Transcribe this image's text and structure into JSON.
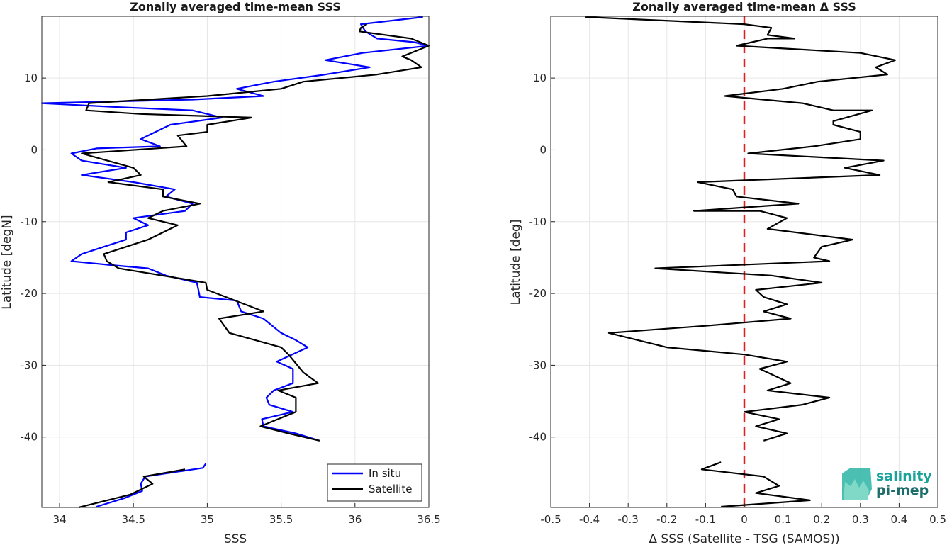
{
  "chart_data": [
    {
      "type": "line",
      "title": "Zonally averaged time-mean SSS",
      "xlabel": "SSS",
      "ylabel": "Latitude [degN]",
      "xlim": [
        33.88,
        36.5
      ],
      "ylim": [
        -49.8,
        18.6
      ],
      "xticks": [
        34,
        34.5,
        35,
        35.5,
        36,
        36.5
      ],
      "xtick_labels": [
        "34",
        "34.5",
        "35",
        "35.5",
        "36",
        "36.5"
      ],
      "yticks": [
        -40,
        -30,
        -20,
        -10,
        0,
        10
      ],
      "ytick_labels": [
        "-40",
        "-30",
        "-20",
        "-10",
        "0",
        "10"
      ],
      "grid": true,
      "legend_position": "bottom-right",
      "legend": [
        "In situ",
        "Satellite"
      ],
      "series": [
        {
          "name": "In situ",
          "color": "#0000ff",
          "segments": [
            [
              [
                36.46,
                18.5
              ],
              [
                36.04,
                17.5
              ],
              [
                36.07,
                16.5
              ],
              [
                36.15,
                15.5
              ],
              [
                36.4,
                15.0
              ],
              [
                36.5,
                14.5
              ],
              [
                36.05,
                13.5
              ],
              [
                35.8,
                12.5
              ],
              [
                36.1,
                11.5
              ],
              [
                35.8,
                10.5
              ],
              [
                35.45,
                9.5
              ],
              [
                35.2,
                8.5
              ],
              [
                35.38,
                7.5
              ],
              [
                34.9,
                7.0
              ],
              [
                33.88,
                6.5
              ],
              [
                34.35,
                6.0
              ],
              [
                34.9,
                5.5
              ],
              [
                35.1,
                4.5
              ],
              [
                34.75,
                3.5
              ],
              [
                34.55,
                1.5
              ],
              [
                34.68,
                0.5
              ],
              [
                34.25,
                0.2
              ],
              [
                34.08,
                -0.5
              ],
              [
                34.15,
                -1.5
              ],
              [
                34.45,
                -2.5
              ],
              [
                34.15,
                -3.5
              ],
              [
                34.5,
                -4.5
              ],
              [
                34.78,
                -5.5
              ],
              [
                34.72,
                -6.5
              ],
              [
                34.9,
                -7.5
              ],
              [
                34.85,
                -8.5
              ],
              [
                34.5,
                -9.5
              ],
              [
                34.6,
                -10.5
              ],
              [
                34.45,
                -11.5
              ],
              [
                34.45,
                -12.5
              ],
              [
                34.3,
                -13.5
              ],
              [
                34.15,
                -14.5
              ],
              [
                34.08,
                -15.5
              ],
              [
                34.33,
                -16.0
              ],
              [
                34.6,
                -16.5
              ],
              [
                34.72,
                -17.5
              ],
              [
                34.93,
                -18.5
              ],
              [
                34.95,
                -20.5
              ],
              [
                35.2,
                -21.0
              ],
              [
                35.23,
                -22.5
              ],
              [
                35.38,
                -23.5
              ],
              [
                35.5,
                -25.5
              ],
              [
                35.6,
                -26.5
              ],
              [
                35.68,
                -27.5
              ],
              [
                35.47,
                -29.5
              ],
              [
                35.58,
                -30.5
              ],
              [
                35.58,
                -32.5
              ],
              [
                35.45,
                -33.5
              ],
              [
                35.4,
                -34.5
              ],
              [
                35.42,
                -35.5
              ],
              [
                35.58,
                -36.5
              ],
              [
                35.37,
                -37.5
              ],
              [
                35.38,
                -38.5
              ],
              [
                35.6,
                -39.5
              ],
              [
                35.76,
                -40.5
              ]
            ],
            [
              [
                34.99,
                -43.7
              ],
              [
                34.97,
                -44.3
              ],
              [
                34.58,
                -45.5
              ],
              [
                34.55,
                -46.5
              ],
              [
                34.56,
                -47.5
              ],
              [
                34.44,
                -48.5
              ],
              [
                34.25,
                -49.7
              ]
            ]
          ]
        },
        {
          "name": "Satellite",
          "color": "#000000",
          "segments": [
            [
              [
                36.08,
                17.5
              ],
              [
                36.04,
                17.0
              ],
              [
                36.03,
                16.5
              ],
              [
                36.38,
                15.5
              ],
              [
                36.5,
                14.5
              ],
              [
                36.32,
                13.0
              ],
              [
                36.38,
                12.5
              ],
              [
                36.45,
                11.5
              ],
              [
                36.15,
                10.5
              ],
              [
                35.65,
                9.5
              ],
              [
                35.5,
                8.5
              ],
              [
                35.0,
                7.5
              ],
              [
                34.2,
                6.5
              ],
              [
                34.18,
                5.5
              ],
              [
                34.55,
                5.0
              ],
              [
                35.3,
                4.5
              ],
              [
                35.0,
                3.5
              ],
              [
                35.0,
                2.5
              ],
              [
                34.8,
                2.0
              ],
              [
                34.86,
                0.5
              ],
              [
                34.15,
                -0.5
              ],
              [
                34.5,
                -2.5
              ],
              [
                34.55,
                -3.5
              ],
              [
                34.33,
                -4.5
              ],
              [
                34.7,
                -5.5
              ],
              [
                34.7,
                -6.5
              ],
              [
                34.95,
                -7.5
              ],
              [
                34.7,
                -8.5
              ],
              [
                34.6,
                -9.5
              ],
              [
                34.8,
                -10.5
              ],
              [
                34.6,
                -12.5
              ],
              [
                34.3,
                -14.5
              ],
              [
                34.32,
                -15.5
              ],
              [
                34.4,
                -16.5
              ],
              [
                34.99,
                -18.5
              ],
              [
                35.0,
                -19.5
              ],
              [
                35.38,
                -22.5
              ],
              [
                35.08,
                -23.5
              ],
              [
                35.15,
                -25.5
              ],
              [
                35.5,
                -27.5
              ],
              [
                35.55,
                -28.5
              ],
              [
                35.65,
                -31.0
              ],
              [
                35.75,
                -32.5
              ],
              [
                35.48,
                -33.5
              ],
              [
                35.6,
                -34.5
              ],
              [
                35.6,
                -36.5
              ],
              [
                35.36,
                -38.5
              ],
              [
                35.55,
                -39.5
              ],
              [
                35.76,
                -40.5
              ]
            ],
            [
              [
                34.85,
                -44.5
              ],
              [
                34.57,
                -45.5
              ],
              [
                34.6,
                -46.0
              ],
              [
                34.63,
                -46.5
              ],
              [
                34.48,
                -48.0
              ],
              [
                34.13,
                -49.8
              ]
            ]
          ]
        }
      ]
    },
    {
      "type": "line",
      "title": "Zonally averaged time-mean Δ SSS",
      "xlabel": "Δ SSS (Satellite - TSG (SAMOS))",
      "ylabel": "Latitude [deg]",
      "xlim": [
        -0.5,
        0.5
      ],
      "ylim": [
        -49.8,
        18.6
      ],
      "xticks": [
        -0.5,
        -0.4,
        -0.3,
        -0.2,
        -0.1,
        0,
        0.1,
        0.2,
        0.3,
        0.4,
        0.5
      ],
      "xtick_labels": [
        "-0.5",
        "-0.4",
        "-0.3",
        "-0.2",
        "-0.1",
        "0",
        "0.1",
        "0.2",
        "0.3",
        "0.4",
        "0.5"
      ],
      "yticks": [
        -40,
        -30,
        -20,
        -10,
        0,
        10
      ],
      "ytick_labels": [
        "-40",
        "-30",
        "-20",
        "-10",
        "0",
        "10"
      ],
      "grid": true,
      "reference_line": {
        "x": 0,
        "color": "#e02020",
        "style": "dashed"
      },
      "series": [
        {
          "color": "#000000",
          "segments": [
            [
              [
                -0.41,
                18.5
              ],
              [
                0.0,
                17.5
              ],
              [
                0.07,
                17.0
              ],
              [
                0.06,
                16.0
              ],
              [
                0.13,
                15.5
              ],
              [
                0.06,
                15.5
              ],
              [
                -0.02,
                14.5
              ],
              [
                0.3,
                13.5
              ],
              [
                0.39,
                12.5
              ],
              [
                0.34,
                11.5
              ],
              [
                0.37,
                10.5
              ],
              [
                0.19,
                9.5
              ],
              [
                0.1,
                8.5
              ],
              [
                -0.05,
                7.5
              ],
              [
                0.15,
                6.5
              ],
              [
                0.23,
                5.5
              ],
              [
                0.33,
                5.5
              ],
              [
                0.23,
                4.0
              ],
              [
                0.23,
                3.5
              ],
              [
                0.3,
                2.5
              ],
              [
                0.3,
                1.5
              ],
              [
                0.18,
                0.5
              ],
              [
                0.01,
                -0.5
              ],
              [
                0.36,
                -1.5
              ],
              [
                0.26,
                -2.5
              ],
              [
                0.35,
                -3.5
              ],
              [
                -0.12,
                -4.5
              ],
              [
                -0.03,
                -5.5
              ],
              [
                -0.02,
                -6.5
              ],
              [
                0.14,
                -7.5
              ],
              [
                -0.13,
                -8.5
              ],
              [
                0.04,
                -8.5
              ],
              [
                0.11,
                -9.5
              ],
              [
                0.06,
                -11.0
              ],
              [
                0.28,
                -12.5
              ],
              [
                0.2,
                -13.5
              ],
              [
                0.18,
                -15.0
              ],
              [
                0.22,
                -15.5
              ],
              [
                -0.23,
                -16.5
              ],
              [
                0.07,
                -17.5
              ],
              [
                0.2,
                -18.5
              ],
              [
                0.03,
                -19.5
              ],
              [
                0.05,
                -20.5
              ],
              [
                0.11,
                -21.5
              ],
              [
                0.05,
                -22.5
              ],
              [
                0.12,
                -23.5
              ],
              [
                -0.1,
                -24.5
              ],
              [
                -0.35,
                -25.5
              ],
              [
                -0.2,
                -27.5
              ],
              [
                0.0,
                -28.5
              ],
              [
                0.11,
                -29.5
              ],
              [
                0.04,
                -30.5
              ],
              [
                0.08,
                -31.5
              ],
              [
                0.12,
                -32.5
              ],
              [
                0.06,
                -33.5
              ],
              [
                0.22,
                -34.5
              ],
              [
                0.15,
                -35.5
              ],
              [
                0.0,
                -36.5
              ],
              [
                0.09,
                -37.5
              ],
              [
                0.03,
                -38.5
              ],
              [
                0.11,
                -39.5
              ],
              [
                0.05,
                -40.5
              ]
            ],
            [
              [
                -0.06,
                -43.5
              ],
              [
                -0.11,
                -44.5
              ],
              [
                0.05,
                -45.5
              ],
              [
                0.09,
                -46.8
              ],
              [
                0.03,
                -47.8
              ],
              [
                0.17,
                -48.8
              ],
              [
                -0.06,
                -49.7
              ]
            ]
          ]
        }
      ]
    }
  ],
  "logo": {
    "line1": "salinity",
    "line2": "pi-mep"
  }
}
